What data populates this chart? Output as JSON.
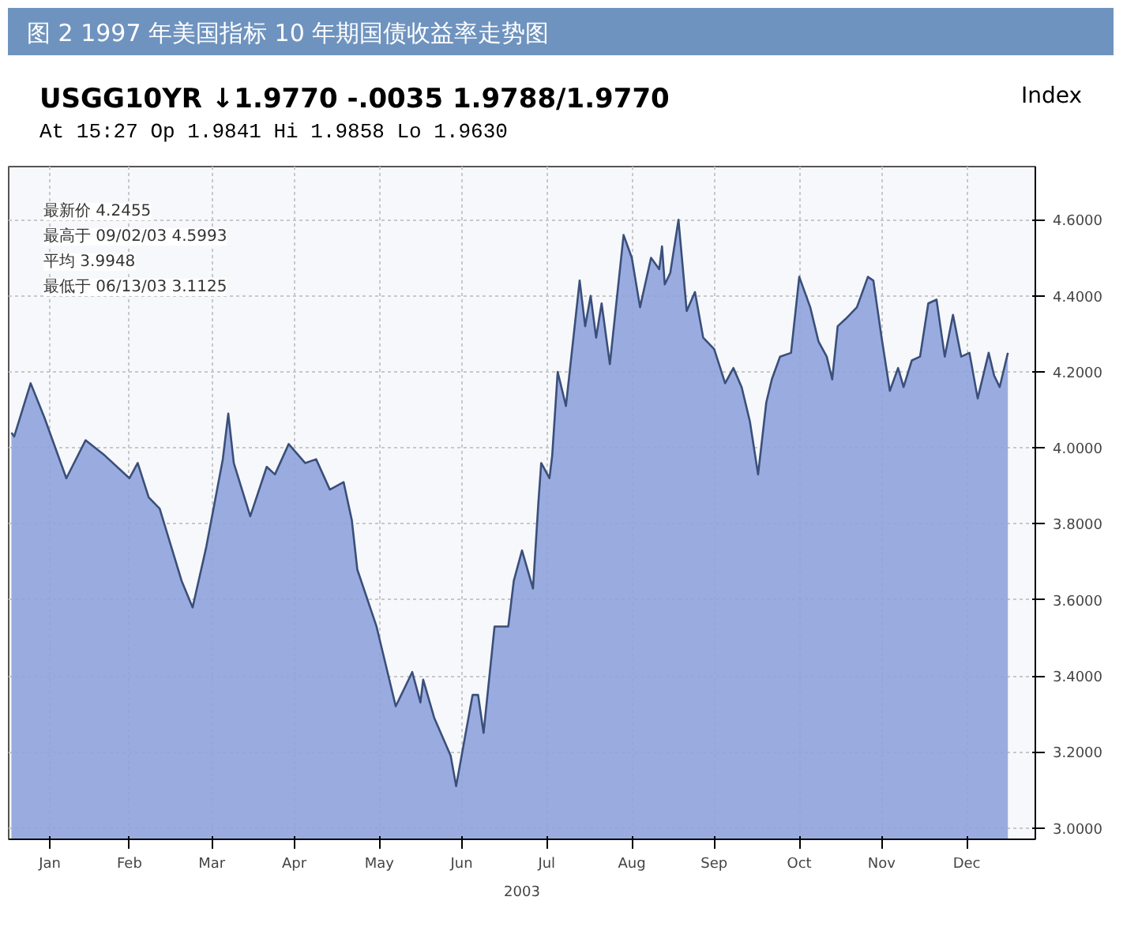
{
  "chart_data": {
    "type": "area",
    "title": "图 2 1997 年美国指标 10 年期国债收益率走势图",
    "subtitle": "USGG10YR ↓1.9770 -.0035 1.9788/1.9770",
    "xlabel": "2003",
    "annotations": [
      "At 15:27 Op 1.9841 Hi 1.9858 Lo 1.9630",
      "Index",
      "最新价 4.2455",
      "最高于 09/02/03 4.5993",
      "平均 3.9948",
      "最低于 06/13/03 3.1125"
    ],
    "x": [
      "2003-01-02",
      "2003-01-03",
      "2003-01-09",
      "2003-01-14",
      "2003-01-22",
      "2003-01-29",
      "2003-02-05",
      "2003-02-14",
      "2003-02-17",
      "2003-02-21",
      "2003-02-25",
      "2003-03-05",
      "2003-03-09",
      "2003-03-14",
      "2003-03-20",
      "2003-03-22",
      "2003-03-24",
      "2003-03-30",
      "2003-04-05",
      "2003-04-08",
      "2003-04-13",
      "2003-04-19",
      "2003-04-23",
      "2003-04-28",
      "2003-05-03",
      "2003-05-06",
      "2003-05-08",
      "2003-05-15",
      "2003-05-18",
      "2003-05-22",
      "2003-05-28",
      "2003-05-31",
      "2003-06-01",
      "2003-06-05",
      "2003-06-11",
      "2003-06-13",
      "2003-06-19",
      "2003-06-21",
      "2003-06-23",
      "2003-06-27",
      "2003-07-02",
      "2003-07-04",
      "2003-07-07",
      "2003-07-11",
      "2003-07-13",
      "2003-07-14",
      "2003-07-17",
      "2003-07-18",
      "2003-07-20",
      "2003-07-23",
      "2003-07-28",
      "2003-07-30",
      "2003-08-01",
      "2003-08-03",
      "2003-08-05",
      "2003-08-08",
      "2003-08-13",
      "2003-08-16",
      "2003-08-19",
      "2003-08-23",
      "2003-08-26",
      "2003-08-27",
      "2003-08-28",
      "2003-08-30",
      "2003-09-02",
      "2003-09-05",
      "2003-09-08",
      "2003-09-11",
      "2003-09-15",
      "2003-09-19",
      "2003-09-22",
      "2003-09-25",
      "2003-09-28",
      "2003-10-01",
      "2003-10-04",
      "2003-10-06",
      "2003-10-09",
      "2003-10-13",
      "2003-10-16",
      "2003-10-20",
      "2003-10-23",
      "2003-10-26",
      "2003-10-28",
      "2003-10-30",
      "2003-11-02",
      "2003-11-06",
      "2003-11-10",
      "2003-11-12",
      "2003-11-15",
      "2003-11-18",
      "2003-11-21",
      "2003-11-23",
      "2003-11-26",
      "2003-11-29",
      "2003-12-02",
      "2003-12-05",
      "2003-12-08",
      "2003-12-11",
      "2003-12-14",
      "2003-12-17",
      "2003-12-20",
      "2003-12-24",
      "2003-12-26",
      "2003-12-28",
      "2003-12-31"
    ],
    "series": [
      {
        "color": "#8fa3dc",
        "values": [
          4.04,
          4.03,
          4.17,
          4.08,
          3.92,
          4.02,
          3.98,
          3.92,
          3.96,
          3.87,
          3.84,
          3.65,
          3.58,
          3.74,
          3.97,
          4.09,
          3.96,
          3.82,
          3.95,
          3.93,
          4.01,
          3.96,
          3.97,
          3.89,
          3.91,
          3.81,
          3.68,
          3.53,
          3.44,
          3.32,
          3.41,
          3.33,
          3.39,
          3.29,
          3.19,
          3.11,
          3.35,
          3.35,
          3.25,
          3.53,
          3.53,
          3.65,
          3.73,
          3.63,
          3.86,
          3.96,
          3.92,
          3.98,
          4.2,
          4.11,
          4.44,
          4.32,
          4.4,
          4.29,
          4.38,
          4.22,
          4.56,
          4.5,
          4.37,
          4.5,
          4.47,
          4.53,
          4.43,
          4.46,
          4.6,
          4.36,
          4.41,
          4.29,
          4.26,
          4.17,
          4.21,
          4.16,
          4.07,
          3.93,
          4.12,
          4.18,
          4.24,
          4.25,
          4.45,
          4.37,
          4.28,
          4.24,
          4.18,
          4.32,
          4.34,
          4.37,
          4.45,
          4.44,
          4.29,
          4.15,
          4.21,
          4.16,
          4.23,
          4.24,
          4.38,
          4.39,
          4.24,
          4.35,
          4.24,
          4.25,
          4.13,
          4.25,
          4.19,
          4.16,
          4.25
        ]
      }
    ],
    "xlim": [
      "2003-01-01",
      "2004-01-10"
    ],
    "xticks": [
      {
        "value": "2003-01-16",
        "label": "Jan"
      },
      {
        "value": "2003-02-14",
        "label": "Feb"
      },
      {
        "value": "2003-03-16",
        "label": "Mar"
      },
      {
        "value": "2003-04-15",
        "label": "Apr"
      },
      {
        "value": "2003-05-16",
        "label": "May"
      },
      {
        "value": "2003-06-15",
        "label": "Jun"
      },
      {
        "value": "2003-07-16",
        "label": "Jul"
      },
      {
        "value": "2003-08-16",
        "label": "Aug"
      },
      {
        "value": "2003-09-15",
        "label": "Sep"
      },
      {
        "value": "2003-10-16",
        "label": "Oct"
      },
      {
        "value": "2003-11-15",
        "label": "Nov"
      },
      {
        "value": "2003-12-16",
        "label": "Dec"
      }
    ],
    "ylim": [
      2.97,
      4.74
    ],
    "yticks": [
      {
        "value": 3.0,
        "label": "3.0000"
      },
      {
        "value": 3.2,
        "label": "3.2000"
      },
      {
        "value": 3.4,
        "label": "3.4000"
      },
      {
        "value": 3.6,
        "label": "3.6000"
      },
      {
        "value": 3.8,
        "label": "3.8000"
      },
      {
        "value": 4.0,
        "label": "4.0000"
      },
      {
        "value": 4.2,
        "label": "4.2000"
      },
      {
        "value": 4.4,
        "label": "4.4000"
      },
      {
        "value": 4.6,
        "label": "4.6000"
      }
    ],
    "grid": true,
    "line_style": "solid"
  }
}
